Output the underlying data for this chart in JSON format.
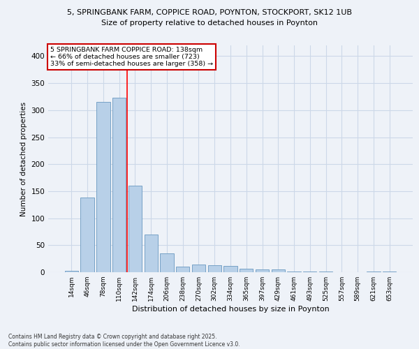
{
  "title1": "5, SPRINGBANK FARM, COPPICE ROAD, POYNTON, STOCKPORT, SK12 1UB",
  "title2": "Size of property relative to detached houses in Poynton",
  "xlabel": "Distribution of detached houses by size in Poynton",
  "ylabel": "Number of detached properties",
  "categories": [
    "14sqm",
    "46sqm",
    "78sqm",
    "110sqm",
    "142sqm",
    "174sqm",
    "206sqm",
    "238sqm",
    "270sqm",
    "302sqm",
    "334sqm",
    "365sqm",
    "397sqm",
    "429sqm",
    "461sqm",
    "493sqm",
    "525sqm",
    "557sqm",
    "589sqm",
    "621sqm",
    "653sqm"
  ],
  "values": [
    3,
    138,
    315,
    323,
    160,
    70,
    35,
    10,
    14,
    13,
    11,
    7,
    5,
    5,
    1,
    1,
    1,
    0,
    0,
    1,
    1
  ],
  "bar_color": "#b8d0e8",
  "bar_edge_color": "#6898c0",
  "grid_color": "#ccd8e8",
  "background_color": "#eef2f8",
  "red_line_x": 3.5,
  "annotation_text": "5 SPRINGBANK FARM COPPICE ROAD: 138sqm\n← 66% of detached houses are smaller (723)\n33% of semi-detached houses are larger (358) →",
  "annotation_box_color": "#ffffff",
  "annotation_box_edge": "#cc0000",
  "footer_line1": "Contains HM Land Registry data © Crown copyright and database right 2025.",
  "footer_line2": "Contains public sector information licensed under the Open Government Licence v3.0.",
  "ylim": [
    0,
    420
  ],
  "yticks": [
    0,
    50,
    100,
    150,
    200,
    250,
    300,
    350,
    400
  ]
}
